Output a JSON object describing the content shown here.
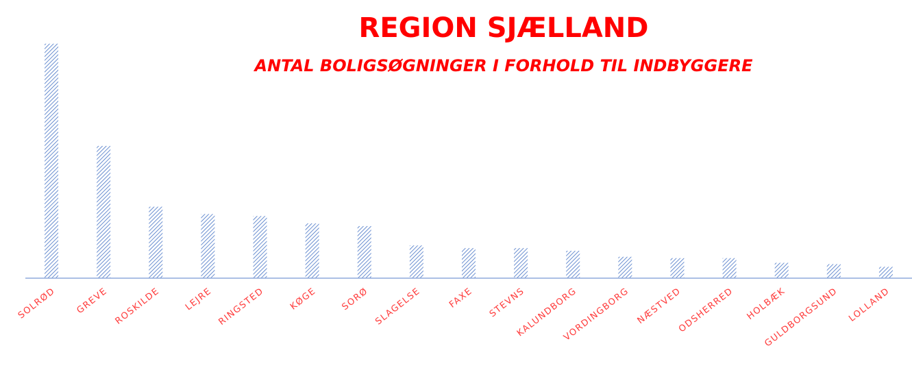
{
  "chart_data": {
    "type": "bar",
    "title": "REGION SJÆLLAND",
    "subtitle": "ANTAL BOLIGSØGNINGER I FORHOLD TIL INDBYGGERE",
    "categories": [
      "SOLRØD",
      "GREVE",
      "ROSKILDE",
      "LEJRE",
      "RINGSTED",
      "KØGE",
      "SORØ",
      "SLAGELSE",
      "FAXE",
      "STEVNS",
      "KALUNDBORG",
      "VORDINGBORG",
      "NÆSTVED",
      "ODSHERRED",
      "HOLBÆK",
      "GULDBORGSUND",
      "LOLLAND"
    ],
    "values": [
      351,
      198,
      107,
      96,
      93,
      82,
      78,
      49,
      45,
      45,
      41,
      32,
      30,
      30,
      23,
      21,
      17
    ],
    "color": "#4472c4",
    "ylim": [
      0,
      360
    ]
  }
}
